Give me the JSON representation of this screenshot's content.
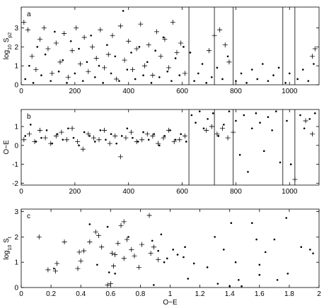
{
  "chart_data": [
    {
      "type": "scatter",
      "panel_label": "a",
      "ylabel": [
        {
          "text": "log"
        },
        {
          "text": "10",
          "sub": true
        },
        {
          "text": " S"
        },
        {
          "text": "p2",
          "sub": true
        }
      ],
      "xlim": [
        0,
        1110
      ],
      "xticks": [
        0,
        200,
        400,
        600,
        800,
        1000
      ],
      "ylim": [
        0,
        4.1
      ],
      "yticks": [
        0,
        1,
        2,
        3
      ],
      "vlines": [
        625,
        720,
        790,
        975,
        1020
      ],
      "series": [
        {
          "marker": "plus",
          "color": "#000000",
          "x": [
            10,
            25,
            40,
            55,
            70,
            85,
            100,
            115,
            130,
            145,
            160,
            175,
            190,
            205,
            220,
            235,
            250,
            265,
            280,
            295,
            310,
            325,
            340,
            355,
            370,
            385,
            400,
            415,
            430,
            445,
            460,
            475,
            490,
            505,
            520,
            535,
            550,
            565,
            580,
            595,
            610,
            700,
            720,
            740,
            760,
            775,
            1085,
            1095
          ],
          "values": [
            3.3,
            2.9,
            1.5,
            0.8,
            2.4,
            3.0,
            1.9,
            0.6,
            2.2,
            1.2,
            2.7,
            0.4,
            1.8,
            3.0,
            1.1,
            2.5,
            0.7,
            2.0,
            1.4,
            2.9,
            0.9,
            1.6,
            2.6,
            0.3,
            3.1,
            1.3,
            2.3,
            0.8,
            1.9,
            3.2,
            1.0,
            2.1,
            0.5,
            2.8,
            1.5,
            2.4,
            0.9,
            3.3,
            1.7,
            2.2,
            0.6,
            1.8,
            2.6,
            2.9,
            2.1,
            1.2,
            1.5,
            1.9
          ]
        },
        {
          "marker": "dot",
          "color": "#000000",
          "x": [
            15,
            30,
            45,
            60,
            75,
            90,
            110,
            125,
            140,
            155,
            170,
            185,
            200,
            215,
            230,
            245,
            260,
            275,
            290,
            305,
            320,
            335,
            350,
            365,
            380,
            395,
            410,
            425,
            440,
            455,
            470,
            485,
            500,
            515,
            530,
            545,
            560,
            575,
            590,
            605,
            630,
            645,
            660,
            675,
            690,
            710,
            730,
            750,
            770,
            800,
            820,
            840,
            860,
            880,
            900,
            920,
            940,
            960,
            985,
            1000,
            1030,
            1050,
            1070,
            1090
          ],
          "values": [
            0.3,
            1.0,
            0.1,
            2.0,
            0.5,
            1.6,
            0.2,
            2.8,
            0.7,
            1.3,
            0.1,
            2.3,
            0.6,
            1.9,
            0.2,
            1.2,
            2.6,
            0.4,
            1.0,
            0.1,
            2.1,
            0.6,
            1.5,
            0.2,
            3.9,
            0.8,
            1.7,
            0.3,
            2.0,
            0.5,
            1.2,
            0.1,
            1.8,
            0.4,
            2.5,
            0.7,
            0.2,
            1.4,
            0.5,
            2.0,
            1.7,
            0.2,
            0.6,
            1.1,
            0.1,
            0.4,
            0.9,
            0.3,
            1.5,
            0.2,
            0.6,
            0.1,
            0.8,
            0.3,
            1.1,
            0.2,
            0.5,
            0.9,
            0.1,
            0.6,
            0.3,
            0.8,
            0.2,
            1.1
          ]
        }
      ]
    },
    {
      "type": "scatter",
      "panel_label": "b",
      "ylabel": [
        {
          "text": "O−E"
        }
      ],
      "xlim": [
        0,
        1110
      ],
      "xticks": [
        0,
        200,
        400,
        600,
        800,
        1000
      ],
      "ylim": [
        -2.1,
        1.9
      ],
      "yticks": [
        -2,
        -1,
        0,
        1
      ],
      "vlines": [
        625,
        720,
        790,
        975,
        1020
      ],
      "series": [
        {
          "marker": "plus",
          "color": "#000000",
          "x": [
            10,
            30,
            50,
            70,
            90,
            110,
            130,
            150,
            170,
            190,
            210,
            230,
            250,
            270,
            290,
            310,
            330,
            350,
            370,
            390,
            410,
            430,
            450,
            470,
            490,
            510,
            530,
            550,
            570,
            590,
            610,
            690,
            710,
            730,
            750,
            770,
            790,
            1020,
            1085,
            1060
          ],
          "values": [
            0.3,
            0.6,
            0.2,
            0.8,
            0.4,
            0.1,
            0.5,
            0.7,
            0.3,
            0.9,
            0.2,
            -0.2,
            0.6,
            0.4,
            0.3,
            0.8,
            0.1,
            0.5,
            -0.6,
            0.4,
            0.7,
            0.2,
            0.3,
            0.6,
            0.5,
            0.1,
            0.4,
            0.8,
            0.2,
            0.3,
            0.5,
            0.8,
            1.0,
            0.6,
            0.9,
            0.4,
            0.7,
            -1.8,
            0.6,
            1.3
          ]
        },
        {
          "marker": "dot",
          "color": "#000000",
          "x": [
            15,
            35,
            55,
            75,
            95,
            115,
            135,
            155,
            175,
            195,
            215,
            235,
            255,
            275,
            295,
            315,
            335,
            355,
            375,
            395,
            415,
            435,
            455,
            475,
            495,
            515,
            535,
            555,
            575,
            595,
            615,
            635,
            650,
            665,
            680,
            695,
            715,
            735,
            755,
            775,
            800,
            815,
            830,
            845,
            860,
            875,
            890,
            905,
            920,
            935,
            950,
            965,
            990,
            1005,
            1040,
            1055,
            1075,
            1095
          ],
          "values": [
            0.5,
            1.1,
            0.2,
            0.4,
            0.8,
            0.1,
            0.6,
            0.3,
            0.9,
            0.4,
            0.0,
            0.7,
            0.5,
            0.2,
            0.8,
            0.3,
            0.6,
            0.1,
            0.5,
            0.9,
            0.4,
            0.2,
            0.7,
            0.3,
            0.6,
            0.0,
            0.5,
            0.8,
            0.3,
            0.6,
            0.2,
            1.6,
            1.2,
            1.8,
            0.9,
            1.4,
            1.7,
            0.5,
            1.1,
            1.8,
            1.3,
            -0.5,
            1.6,
            -1.4,
            0.9,
            1.7,
            1.2,
            -0.3,
            1.5,
            0.8,
            1.8,
            -0.9,
            1.3,
            -1.0,
            1.6,
            0.9,
            1.4,
            1.7
          ]
        }
      ]
    },
    {
      "type": "scatter",
      "panel_label": "c",
      "ylabel": [
        {
          "text": "log"
        },
        {
          "text": "10",
          "sub": true
        },
        {
          "text": " S"
        },
        {
          "text": "t",
          "sub": true
        }
      ],
      "xlabel": "O−E",
      "xlim": [
        0,
        2
      ],
      "xticks": [
        0,
        0.2,
        0.4,
        0.6,
        0.8,
        1,
        1.2,
        1.4,
        1.6,
        1.8,
        2
      ],
      "ylim": [
        0,
        3.1
      ],
      "yticks": [
        0,
        1,
        2,
        3
      ],
      "series": [
        {
          "marker": "plus",
          "color": "#000000",
          "x": [
            0.12,
            0.18,
            0.23,
            0.24,
            0.29,
            0.38,
            0.39,
            0.4,
            0.42,
            0.46,
            0.5,
            0.52,
            0.54,
            0.58,
            0.6,
            0.61,
            0.62,
            0.63,
            0.65,
            0.67,
            0.69,
            0.71,
            0.74,
            0.76,
            0.79,
            0.81,
            0.86,
            0.87,
            0.89,
            0.92,
            0.69
          ],
          "values": [
            2.0,
            0.7,
            0.65,
            0.95,
            1.8,
            0.75,
            1.4,
            1.05,
            1.45,
            1.8,
            2.2,
            2.05,
            1.6,
            0.1,
            0.15,
            1.35,
            0.85,
            1.3,
            1.75,
            2.45,
            2.6,
            1.9,
            1.5,
            1.25,
            0.8,
            1.7,
            2.85,
            1.35,
            1.6,
            1.1,
            1.15
          ]
        },
        {
          "marker": "dot",
          "color": "#000000",
          "x": [
            0.22,
            0.46,
            0.51,
            0.58,
            0.59,
            0.63,
            0.72,
            0.88,
            0.89,
            0.92,
            0.94,
            0.96,
            0.98,
            1.05,
            1.09,
            1.1,
            1.12,
            1.16,
            1.25,
            1.3,
            1.32,
            1.4,
            1.41,
            1.44,
            1.46,
            1.48,
            1.55,
            1.58,
            1.6,
            1.64,
            1.7,
            1.72,
            1.78,
            1.79,
            1.88,
            1.94,
            1.96,
            1.36,
            1.02,
            1.6
          ],
          "values": [
            0.75,
            2.5,
            0.9,
            2.4,
            0.6,
            0.55,
            2.0,
            1.85,
            0.1,
            1.45,
            2.1,
            1.0,
            1.15,
            1.3,
            1.2,
            1.6,
            0.35,
            0.95,
            0.8,
            2.0,
            0.15,
            0.05,
            2.55,
            1.0,
            0.3,
            0.05,
            2.55,
            1.9,
            0.9,
            1.4,
            1.9,
            0.3,
            2.75,
            0.55,
            1.6,
            1.5,
            1.35,
            1.5,
            1.5,
            0.5
          ]
        }
      ]
    }
  ]
}
